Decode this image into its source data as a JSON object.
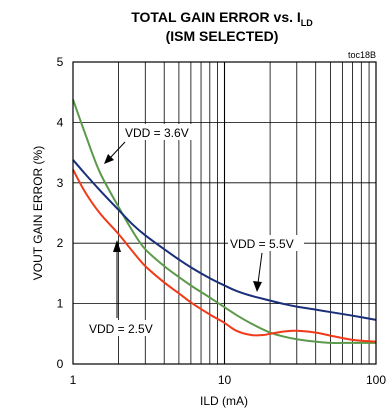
{
  "chart_data": {
    "type": "line",
    "title_line1_main": "TOTAL GAIN ERROR vs. I",
    "title_line1_sub": "LD",
    "title_line2": "(ISM SELECTED)",
    "ref_code": "toc18B",
    "xlabel": "ILD (mA)",
    "ylabel": "VOUT GAIN ERROR (%)",
    "x_scale": "log",
    "xlim": [
      1,
      100
    ],
    "ylim": [
      0,
      5
    ],
    "x_ticks": [
      {
        "value": 1,
        "label": "1"
      },
      {
        "value": 10,
        "label": "10"
      },
      {
        "value": 100,
        "label": "100"
      }
    ],
    "y_ticks": [
      {
        "value": 0,
        "label": "0"
      },
      {
        "value": 1,
        "label": "1"
      },
      {
        "value": 2,
        "label": "2"
      },
      {
        "value": 3,
        "label": "3"
      },
      {
        "value": 4,
        "label": "4"
      },
      {
        "value": 5,
        "label": "5"
      }
    ],
    "grid": true,
    "series": [
      {
        "name": "VDD = 3.6V",
        "color": "#5a9a4a",
        "points": [
          [
            1,
            4.38
          ],
          [
            1.2,
            3.82
          ],
          [
            1.5,
            3.18
          ],
          [
            2,
            2.6
          ],
          [
            2.5,
            2.18
          ],
          [
            3,
            1.9
          ],
          [
            4,
            1.62
          ],
          [
            5,
            1.44
          ],
          [
            6,
            1.3
          ],
          [
            8,
            1.1
          ],
          [
            10,
            0.94
          ],
          [
            12,
            0.81
          ],
          [
            15,
            0.67
          ],
          [
            20,
            0.52
          ],
          [
            25,
            0.45
          ],
          [
            30,
            0.41
          ],
          [
            40,
            0.37
          ],
          [
            50,
            0.35
          ],
          [
            70,
            0.35
          ],
          [
            100,
            0.35
          ]
        ]
      },
      {
        "name": "VDD = 5.5V",
        "color": "#1a2f7a",
        "points": [
          [
            1,
            3.38
          ],
          [
            1.2,
            3.15
          ],
          [
            1.5,
            2.88
          ],
          [
            2,
            2.55
          ],
          [
            2.5,
            2.3
          ],
          [
            3,
            2.13
          ],
          [
            4,
            1.9
          ],
          [
            5,
            1.73
          ],
          [
            6,
            1.6
          ],
          [
            8,
            1.42
          ],
          [
            10,
            1.3
          ],
          [
            12,
            1.21
          ],
          [
            15,
            1.13
          ],
          [
            20,
            1.05
          ],
          [
            25,
            0.99
          ],
          [
            30,
            0.95
          ],
          [
            40,
            0.9
          ],
          [
            50,
            0.86
          ],
          [
            70,
            0.8
          ],
          [
            100,
            0.73
          ]
        ]
      },
      {
        "name": "VDD = 2.5V",
        "color": "#f03a1a",
        "points": [
          [
            1,
            3.22
          ],
          [
            1.2,
            2.85
          ],
          [
            1.5,
            2.5
          ],
          [
            2,
            2.15
          ],
          [
            2.5,
            1.85
          ],
          [
            3,
            1.62
          ],
          [
            4,
            1.35
          ],
          [
            5,
            1.17
          ],
          [
            6,
            1.02
          ],
          [
            8,
            0.82
          ],
          [
            10,
            0.68
          ],
          [
            12,
            0.55
          ],
          [
            15,
            0.48
          ],
          [
            18,
            0.48
          ],
          [
            20,
            0.5
          ],
          [
            25,
            0.54
          ],
          [
            30,
            0.55
          ],
          [
            40,
            0.52
          ],
          [
            50,
            0.47
          ],
          [
            70,
            0.4
          ],
          [
            100,
            0.37
          ]
        ]
      }
    ],
    "annotations": [
      {
        "text": "VDD = 3.6V",
        "series": "VDD = 3.6V"
      },
      {
        "text": "VDD = 5.5V",
        "series": "VDD = 5.5V"
      },
      {
        "text": "VDD = 2.5V",
        "series": "VDD = 2.5V"
      }
    ]
  }
}
